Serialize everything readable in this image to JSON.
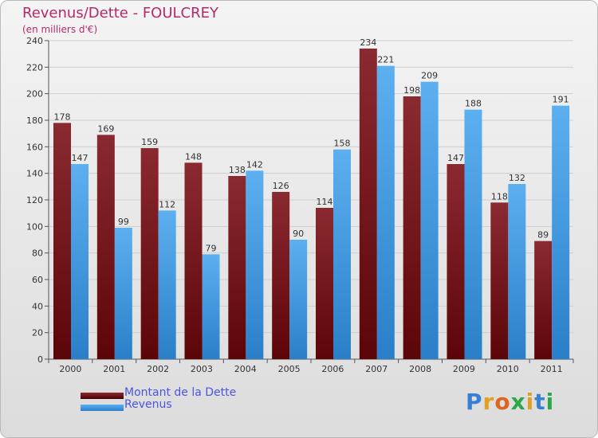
{
  "chart_data": {
    "type": "bar",
    "title": "Revenus/Dette - FOULCREY",
    "subtitle": "(en milliers d'€)",
    "xlabel": "",
    "ylabel": "",
    "categories": [
      "2000",
      "2001",
      "2002",
      "2003",
      "2004",
      "2005",
      "2006",
      "2007",
      "2008",
      "2009",
      "2010",
      "2011"
    ],
    "series": [
      {
        "name": "Montant de la Dette",
        "color": "#7a1a1f",
        "values": [
          178,
          169,
          159,
          148,
          138,
          126,
          114,
          234,
          198,
          147,
          118,
          89
        ]
      },
      {
        "name": "Revenus",
        "color": "#3a9ae6",
        "values": [
          147,
          99,
          112,
          79,
          142,
          90,
          158,
          221,
          209,
          188,
          132,
          191
        ]
      }
    ],
    "ylim": [
      0,
      240
    ],
    "yticks": [
      0,
      20,
      40,
      60,
      80,
      100,
      120,
      140,
      160,
      180,
      200,
      220,
      240
    ],
    "grid": true,
    "legend": "bottom-left"
  },
  "brand": {
    "letters": [
      "P",
      "r",
      "o",
      "x",
      "i",
      "t",
      "i"
    ],
    "colors": [
      "#3a7fd6",
      "#e0a020",
      "#e06420",
      "#2aa84a",
      "#e0a020",
      "#3a7fd6",
      "#2aa84a"
    ]
  }
}
